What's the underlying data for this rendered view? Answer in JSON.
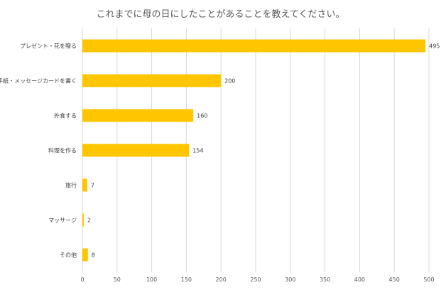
{
  "chart_data": {
    "type": "bar",
    "orientation": "horizontal",
    "title": "これまでに母の日にしたことがあることを教えてください。",
    "categories": [
      "プレゼント・花を贈る",
      "手紙・メッセージカードを書く",
      "外食する",
      "料理を作る",
      "旅行",
      "マッサージ",
      "その他"
    ],
    "values": [
      495,
      200,
      160,
      154,
      7,
      2,
      8
    ],
    "xlim": [
      0,
      500
    ],
    "xticks": [
      0,
      50,
      100,
      150,
      200,
      250,
      300,
      350,
      400,
      450,
      500
    ],
    "xlabel": "",
    "ylabel": "",
    "grid": "vertical",
    "legend": "none",
    "bar_color": "#FFC600",
    "grid_color": "#D9D9D9"
  }
}
